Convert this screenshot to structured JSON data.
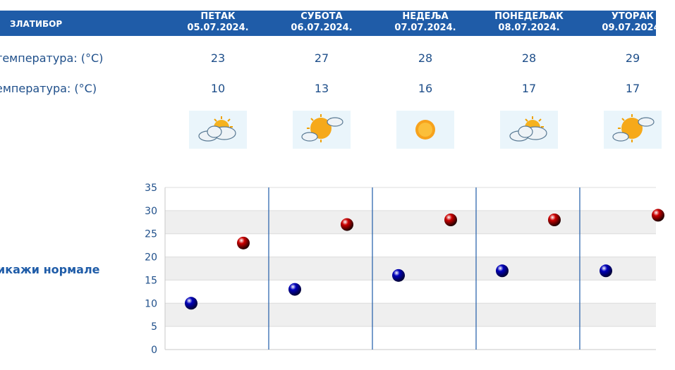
{
  "header": {
    "station": "ЗЛАТИБОР",
    "days": [
      {
        "name": "ПЕТАК",
        "date": "05.07.2024."
      },
      {
        "name": "СУБОТА",
        "date": "06.07.2024."
      },
      {
        "name": "НЕДЕЉА",
        "date": "07.07.2024."
      },
      {
        "name": "ПОНЕДЕЉАК",
        "date": "08.07.2024."
      },
      {
        "name": "УТОРАК",
        "date": "09.07.2024."
      }
    ]
  },
  "rows": {
    "max_label": "температура: (°C)",
    "min_label": "емпература: (°C)",
    "weather_label": ":",
    "max_values": [
      "23",
      "27",
      "28",
      "28",
      "29"
    ],
    "min_values": [
      "10",
      "13",
      "16",
      "17",
      "17"
    ]
  },
  "weather_icons": [
    "sun-behind-cloud-icon",
    "partly-sunny-icon",
    "sun-icon",
    "sun-behind-cloud-icon",
    "partly-sunny-icon"
  ],
  "toggle_label": "икажи нормале",
  "colors": {
    "header": "#1f5ca8",
    "text": "#1f4f8a",
    "max_marker": "#cc0000",
    "min_marker": "#0000bb",
    "divider": "#1f5ca8"
  },
  "chart_data": {
    "type": "scatter",
    "ylim": [
      0,
      35
    ],
    "yticks": [
      0,
      5,
      10,
      15,
      20,
      25,
      30,
      35
    ],
    "categories": [
      "05.07.2024.",
      "06.07.2024.",
      "07.07.2024.",
      "08.07.2024.",
      "09.07.2024."
    ],
    "series": [
      {
        "values": [
          10,
          13,
          16,
          17,
          17
        ],
        "color": "#0000bb"
      },
      {
        "values": [
          23,
          27,
          28,
          28,
          29
        ],
        "color": "#cc0000"
      }
    ],
    "grid": true
  }
}
